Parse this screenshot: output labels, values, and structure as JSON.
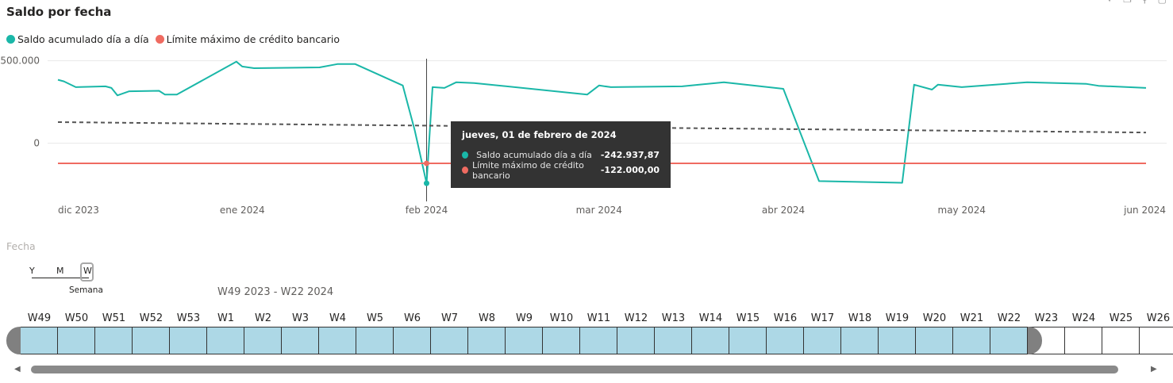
{
  "title": "Saldo por fecha",
  "legend": [
    {
      "label": "Saldo acumulado día a día",
      "color": "#1AB7A8"
    },
    {
      "label": "Límite máximo de crédito bancario",
      "color": "#EF6B61"
    }
  ],
  "header_icons": [
    "pin-icon",
    "copy-icon",
    "filter-icon",
    "focus-mode-icon"
  ],
  "colors": {
    "saldo": "#1AB7A8",
    "limite": "#EF6B61",
    "trend": "#555555",
    "grid": "#e8e8e8"
  },
  "chart_data": {
    "type": "line",
    "x_type": "date",
    "x_ticks": [
      "dic 2023",
      "ene 2024",
      "feb 2024",
      "mar 2024",
      "abr 2024",
      "may 2024",
      "jun 2024"
    ],
    "x_tick_dates": [
      "2023-12-01",
      "2024-01-01",
      "2024-02-01",
      "2024-03-01",
      "2024-04-01",
      "2024-05-01",
      "2024-06-01"
    ],
    "xlim": [
      "2023-12-01",
      "2024-06-01"
    ],
    "y_ticks": [
      {
        "value": 500000,
        "label": "500.000"
      },
      {
        "value": 0,
        "label": "0"
      }
    ],
    "ylim": [
      -300000,
      580000
    ],
    "grid": "horizontal",
    "legend_position": "top-left",
    "series": [
      {
        "name": "Saldo acumulado día a día",
        "color": "#1AB7A8",
        "points": [
          [
            "2023-12-01",
            385000
          ],
          [
            "2023-12-02",
            375000
          ],
          [
            "2023-12-04",
            340000
          ],
          [
            "2023-12-09",
            345000
          ],
          [
            "2023-12-10",
            335000
          ],
          [
            "2023-12-11",
            290000
          ],
          [
            "2023-12-13",
            315000
          ],
          [
            "2023-12-18",
            318000
          ],
          [
            "2023-12-19",
            295000
          ],
          [
            "2023-12-21",
            295000
          ],
          [
            "2023-12-31",
            495000
          ],
          [
            "2024-01-01",
            465000
          ],
          [
            "2024-01-03",
            455000
          ],
          [
            "2024-01-14",
            460000
          ],
          [
            "2024-01-17",
            480000
          ],
          [
            "2024-01-20",
            480000
          ],
          [
            "2024-01-28",
            350000
          ],
          [
            "2024-01-30",
            80000
          ],
          [
            "2024-02-01",
            -242937.87
          ],
          [
            "2024-02-02",
            340000
          ],
          [
            "2024-02-04",
            335000
          ],
          [
            "2024-02-06",
            370000
          ],
          [
            "2024-02-09",
            365000
          ],
          [
            "2024-02-28",
            295000
          ],
          [
            "2024-03-01",
            350000
          ],
          [
            "2024-03-03",
            340000
          ],
          [
            "2024-03-15",
            345000
          ],
          [
            "2024-03-22",
            370000
          ],
          [
            "2024-04-01",
            330000
          ],
          [
            "2024-04-07",
            -230000
          ],
          [
            "2024-04-21",
            -240000
          ],
          [
            "2024-04-23",
            355000
          ],
          [
            "2024-04-26",
            325000
          ],
          [
            "2024-04-27",
            355000
          ],
          [
            "2024-05-01",
            340000
          ],
          [
            "2024-05-12",
            370000
          ],
          [
            "2024-05-22",
            360000
          ],
          [
            "2024-05-24",
            348000
          ],
          [
            "2024-06-01",
            335000
          ]
        ]
      },
      {
        "name": "Límite máximo de crédito bancario",
        "color": "#EF6B61",
        "points": [
          [
            "2023-12-01",
            -122000
          ],
          [
            "2024-06-01",
            -122000
          ]
        ]
      },
      {
        "color": "#555555",
        "style": "dashed",
        "points": [
          [
            "2023-12-01",
            128000
          ],
          [
            "2024-06-01",
            65000
          ]
        ]
      }
    ],
    "hover_date": "2024-02-01"
  },
  "tooltip": {
    "title": "jueves, 01 de febrero de 2024",
    "rows": [
      {
        "label": "Saldo acumulado día a día",
        "value": "-242.937,87",
        "color": "#1AB7A8"
      },
      {
        "label": "Límite máximo de crédito bancario",
        "value": "-122.000,00",
        "color": "#EF6B61"
      }
    ]
  },
  "slicer": {
    "field_label": "Fecha",
    "granularity": {
      "options": [
        "Y",
        "M",
        "W"
      ],
      "selected": "W",
      "selected_label": "Semana"
    },
    "range_label": "W49 2023 - W22 2024",
    "weeks": [
      "W49",
      "W50",
      "W51",
      "W52",
      "W53",
      "W1",
      "W2",
      "W3",
      "W4",
      "W5",
      "W6",
      "W7",
      "W8",
      "W9",
      "W10",
      "W11",
      "W12",
      "W13",
      "W14",
      "W15",
      "W16",
      "W17",
      "W18",
      "W19",
      "W20",
      "W21",
      "W22",
      "W23",
      "W24",
      "W25",
      "W26"
    ],
    "selected_count": 27,
    "scroll_left": "◀",
    "scroll_right": "▶"
  }
}
